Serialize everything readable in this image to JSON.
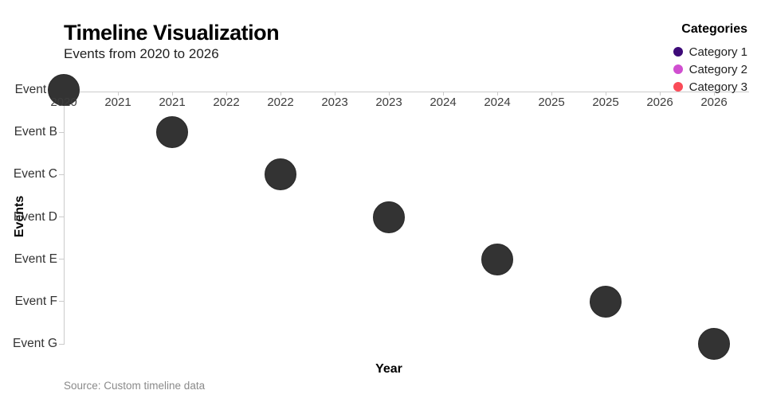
{
  "header": {
    "title": "Timeline Visualization",
    "subtitle": "Events from 2020 to 2026"
  },
  "legend": {
    "title": "Categories",
    "items": [
      {
        "label": "Category 1",
        "color": "#3d0a78"
      },
      {
        "label": "Category 2",
        "color": "#d04fd0"
      },
      {
        "label": "Category 3",
        "color": "#fa4b58"
      }
    ]
  },
  "chart_data": {
    "type": "scatter",
    "title": "Timeline Visualization",
    "subtitle": "Events from 2020 to 2026",
    "xlabel": "Year",
    "ylabel": "Events",
    "x_tick_labels": [
      "2020",
      "2021",
      "2021",
      "2022",
      "2022",
      "2023",
      "2023",
      "2024",
      "2024",
      "2025",
      "2025",
      "2026",
      "2026"
    ],
    "x_range": [
      2020,
      2026
    ],
    "grid": false,
    "legend_position": "top-right",
    "point_color": "#333333",
    "events": [
      {
        "label": "Event A",
        "year": 2020
      },
      {
        "label": "Event B",
        "year": 2021
      },
      {
        "label": "Event C",
        "year": 2022
      },
      {
        "label": "Event D",
        "year": 2023
      },
      {
        "label": "Event E",
        "year": 2024
      },
      {
        "label": "Event F",
        "year": 2025
      },
      {
        "label": "Event G",
        "year": 2026
      }
    ],
    "source": "Source: Custom timeline data"
  }
}
